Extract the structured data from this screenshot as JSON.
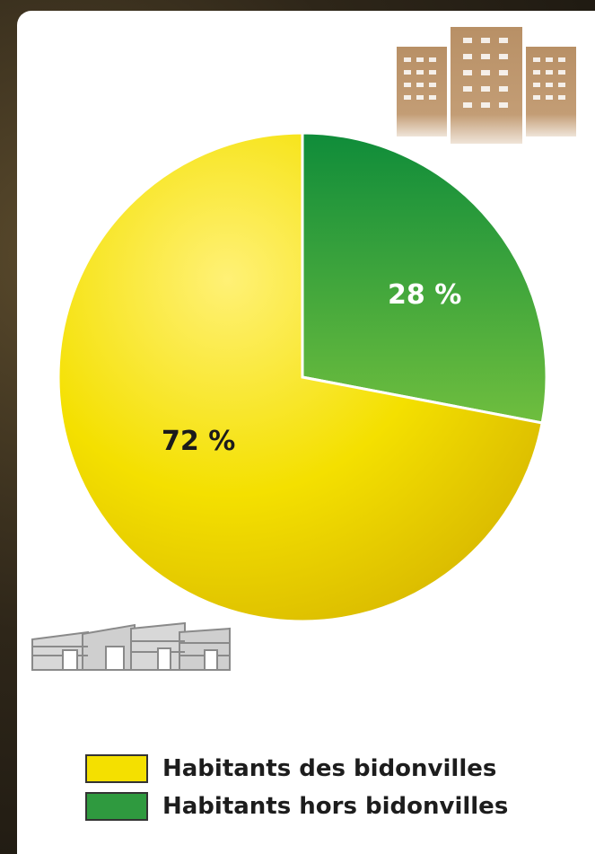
{
  "chart_data": {
    "type": "pie",
    "series": [
      {
        "name": "Habitants des bidonvilles",
        "value": 72,
        "label": "72 %"
      },
      {
        "name": "Habitants hors bidonvilles",
        "value": 28,
        "label": "28 %"
      }
    ],
    "legend_placement": "bottom-left",
    "colors": {
      "Habitants des bidonvilles": "#f4e000",
      "Habitants hors bidonvilles": "#2f9a3f"
    },
    "title": ""
  },
  "icons": {
    "top": "city-buildings-icon",
    "bottom": "slum-shacks-icon"
  }
}
